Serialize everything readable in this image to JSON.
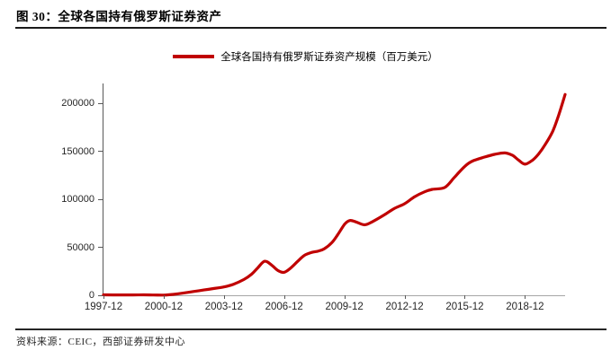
{
  "header": {
    "title": "图 30：全球各国持有俄罗斯证券资产"
  },
  "footer": {
    "source": "资料来源：CEIC，西部证券研发中心"
  },
  "colors": {
    "line": "#c00000",
    "y_axis": "#595959",
    "x_axis": "#a6a6a6",
    "tick_text": "#262626",
    "rule": "#1a1a1a"
  },
  "chart_data": {
    "type": "line",
    "title": "全球各国持有俄罗斯证券资产",
    "legend_position": "top",
    "grid": false,
    "xlabel": "",
    "ylabel": "",
    "xlim": [
      1997.92,
      2020.92
    ],
    "ylim": [
      0,
      221000
    ],
    "x_ticks": [
      {
        "label": "1997-12",
        "value": 1997.92
      },
      {
        "label": "2000-12",
        "value": 2000.92
      },
      {
        "label": "2003-12",
        "value": 2003.92
      },
      {
        "label": "2006-12",
        "value": 2006.92
      },
      {
        "label": "2009-12",
        "value": 2009.92
      },
      {
        "label": "2012-12",
        "value": 2012.92
      },
      {
        "label": "2015-12",
        "value": 2015.92
      },
      {
        "label": "2018-12",
        "value": 2018.92
      }
    ],
    "y_ticks": [
      {
        "label": "0",
        "value": 0
      },
      {
        "label": "50000",
        "value": 50000
      },
      {
        "label": "100000",
        "value": 100000
      },
      {
        "label": "150000",
        "value": 150000
      },
      {
        "label": "200000",
        "value": 200000
      }
    ],
    "series": [
      {
        "name": "全球各国持有俄罗斯证券资产规模（百万美元）",
        "color": "#c00000",
        "points": [
          [
            1997.92,
            500
          ],
          [
            1998.4,
            420
          ],
          [
            1998.92,
            380
          ],
          [
            1999.4,
            400
          ],
          [
            1999.92,
            450
          ],
          [
            2000.4,
            300
          ],
          [
            2000.92,
            150
          ],
          [
            2001.4,
            900
          ],
          [
            2001.92,
            2400
          ],
          [
            2002.4,
            3900
          ],
          [
            2002.92,
            5500
          ],
          [
            2003.4,
            7000
          ],
          [
            2003.92,
            8700
          ],
          [
            2004.4,
            11500
          ],
          [
            2004.92,
            16500
          ],
          [
            2005.3,
            22000
          ],
          [
            2005.6,
            28500
          ],
          [
            2005.95,
            35500
          ],
          [
            2006.3,
            31500
          ],
          [
            2006.6,
            26000
          ],
          [
            2006.92,
            24000
          ],
          [
            2007.25,
            28500
          ],
          [
            2007.6,
            35500
          ],
          [
            2007.92,
            41500
          ],
          [
            2008.3,
            44800
          ],
          [
            2008.6,
            46000
          ],
          [
            2008.92,
            48500
          ],
          [
            2009.3,
            55000
          ],
          [
            2009.6,
            63500
          ],
          [
            2009.95,
            74500
          ],
          [
            2010.2,
            78000
          ],
          [
            2010.5,
            76500
          ],
          [
            2010.92,
            73500
          ],
          [
            2011.3,
            76500
          ],
          [
            2011.92,
            84000
          ],
          [
            2012.4,
            90500
          ],
          [
            2012.92,
            95500
          ],
          [
            2013.4,
            102500
          ],
          [
            2013.92,
            108000
          ],
          [
            2014.3,
            110500
          ],
          [
            2014.92,
            112500
          ],
          [
            2015.4,
            123000
          ],
          [
            2015.92,
            134500
          ],
          [
            2016.3,
            140000
          ],
          [
            2016.92,
            144300
          ],
          [
            2017.4,
            147000
          ],
          [
            2017.92,
            148500
          ],
          [
            2018.3,
            146000
          ],
          [
            2018.6,
            141000
          ],
          [
            2018.92,
            136800
          ],
          [
            2019.3,
            141000
          ],
          [
            2019.6,
            147500
          ],
          [
            2019.92,
            157000
          ],
          [
            2020.3,
            171000
          ],
          [
            2020.6,
            188000
          ],
          [
            2020.92,
            209500
          ]
        ]
      }
    ]
  }
}
